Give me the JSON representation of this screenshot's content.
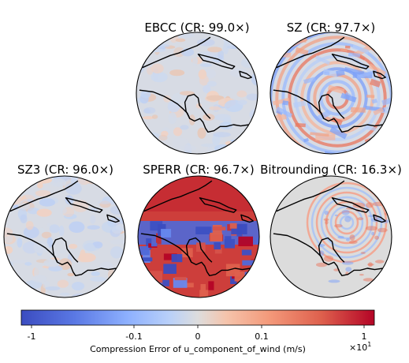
{
  "chart_data": {
    "type": "heatmap",
    "panels": [
      {
        "name": "EBCC",
        "title": "EBCC (CR: 99.0×)",
        "compression_ratio": 99.0,
        "error_pattern": "low-amplitude mixed noise, mostly light"
      },
      {
        "name": "SZ",
        "title": "SZ (CR: 97.7×)",
        "compression_ratio": 97.7,
        "error_pattern": "banded blue/red artifacts, moderate amplitude"
      },
      {
        "name": "SZ3",
        "title": "SZ3 (CR: 96.0×)",
        "compression_ratio": 96.0,
        "error_pattern": "fine mixed noise, mostly light blue"
      },
      {
        "name": "SPERR",
        "title": "SPERR (CR: 96.7×)",
        "compression_ratio": 96.7,
        "error_pattern": "large blocky saturated red and blue regions"
      },
      {
        "name": "Bitrounding",
        "title": "Bitrounding (CR: 16.3×)",
        "compression_ratio": 16.3,
        "error_pattern": "near-zero grey with ring-shaped ripples"
      }
    ],
    "colorbar": {
      "label": "Compression Error of u_component_of_wind (m/s)",
      "scale": "symlog",
      "range": [
        -1,
        1
      ],
      "ticks": [
        "-1",
        "-0.1",
        "0",
        "0.1",
        "1"
      ],
      "multiplier": "×10",
      "multiplier_exponent": "1",
      "colormap": "coolwarm"
    }
  },
  "colors": {
    "negative": "#3b4cc0",
    "neutral": "#dddddd",
    "positive": "#b40426",
    "coast": "#000000"
  }
}
